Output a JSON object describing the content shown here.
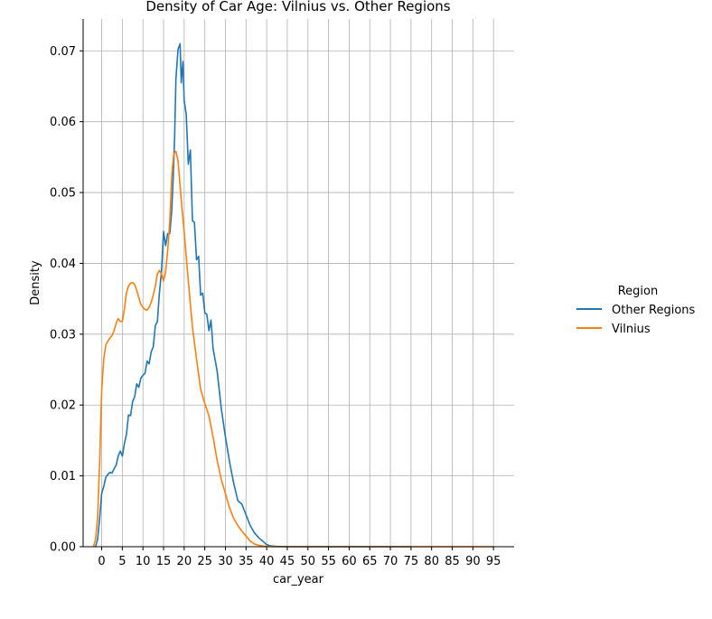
{
  "chart_data": {
    "type": "line",
    "title": "Density of Car Age: Vilnius vs. Other Regions",
    "xlabel": "car_year",
    "ylabel": "Density",
    "xlim": [
      -4.5,
      100
    ],
    "ylim": [
      0,
      0.0745
    ],
    "xticks": [
      0,
      5,
      10,
      15,
      20,
      25,
      30,
      35,
      40,
      45,
      50,
      55,
      60,
      65,
      70,
      75,
      80,
      85,
      90,
      95
    ],
    "xtick_labels": [
      "0",
      "5",
      "10",
      "15",
      "20",
      "25",
      "30",
      "35",
      "40",
      "45",
      "50",
      "55",
      "60",
      "65",
      "70",
      "75",
      "80",
      "85",
      "90",
      "95"
    ],
    "yticks": [
      0,
      0.01,
      0.02,
      0.03,
      0.04,
      0.05,
      0.06,
      0.07
    ],
    "ytick_labels": [
      "0.00",
      "0.01",
      "0.02",
      "0.03",
      "0.04",
      "0.05",
      "0.06",
      "0.07"
    ],
    "grid": "vertical and horizontal",
    "legend": {
      "title": "Region",
      "placement": "right outside"
    },
    "series": [
      {
        "name": "Other Regions",
        "color": "#1f77b4",
        "x": [
          -1.5,
          -1,
          -0.5,
          0,
          0.5,
          1,
          1.5,
          2,
          2.5,
          3,
          3.5,
          4,
          4.5,
          5,
          5.5,
          6,
          6.5,
          7,
          7.5,
          8,
          8.5,
          9,
          9.5,
          10,
          10.5,
          11,
          11.5,
          12,
          12.5,
          13,
          13.5,
          14,
          14.5,
          15,
          15.5,
          16,
          16.5,
          17,
          17.3,
          17.7,
          18,
          18.5,
          19,
          19.3,
          19.7,
          20,
          20.5,
          21,
          21.5,
          22,
          22.5,
          23,
          23.5,
          24,
          24.5,
          25,
          25.5,
          26,
          26.5,
          27,
          28,
          29,
          30,
          31,
          32,
          33,
          34,
          35,
          36,
          37,
          38,
          39,
          40,
          41,
          42,
          45,
          50,
          55,
          60,
          65,
          70,
          75
        ],
        "y": [
          0,
          0.001,
          0.004,
          0.0075,
          0.0085,
          0.0098,
          0.0102,
          0.0105,
          0.0104,
          0.011,
          0.0115,
          0.0128,
          0.0135,
          0.0128,
          0.0145,
          0.0158,
          0.0186,
          0.0185,
          0.0205,
          0.0212,
          0.023,
          0.0225,
          0.0238,
          0.0242,
          0.0245,
          0.0262,
          0.0258,
          0.0275,
          0.0282,
          0.0312,
          0.0318,
          0.0358,
          0.0388,
          0.0445,
          0.0425,
          0.0442,
          0.0442,
          0.0475,
          0.0515,
          0.058,
          0.066,
          0.0702,
          0.071,
          0.0655,
          0.0685,
          0.063,
          0.061,
          0.054,
          0.056,
          0.046,
          0.0458,
          0.0405,
          0.041,
          0.0355,
          0.0358,
          0.033,
          0.0328,
          0.0305,
          0.032,
          0.028,
          0.0248,
          0.0195,
          0.0155,
          0.012,
          0.009,
          0.0065,
          0.006,
          0.0045,
          0.003,
          0.002,
          0.0013,
          0.0008,
          0.0003,
          0.0001,
          5e-05,
          0,
          0,
          0,
          0,
          0,
          0,
          0
        ]
      },
      {
        "name": "Vilnius",
        "color": "#ff7f0e",
        "x": [
          -2,
          -1.5,
          -1,
          -0.5,
          0,
          0.5,
          1,
          1.5,
          2,
          2.5,
          3,
          3.5,
          4,
          4.5,
          5,
          5.5,
          6,
          6.5,
          7,
          7.5,
          8,
          8.5,
          9,
          9.5,
          10,
          10.5,
          11,
          11.5,
          12,
          12.5,
          13,
          13.5,
          14,
          14.5,
          15,
          15.5,
          16,
          16.5,
          17,
          17.5,
          18,
          18.5,
          19,
          19.5,
          20,
          21,
          22,
          23,
          24,
          25,
          26,
          27,
          28,
          29,
          30,
          31,
          32,
          33,
          34,
          35,
          36,
          37,
          38,
          39,
          40,
          42,
          45,
          50,
          60,
          70,
          80,
          90,
          95
        ],
        "y": [
          0,
          0.001,
          0.004,
          0.012,
          0.022,
          0.0265,
          0.0285,
          0.029,
          0.0295,
          0.0298,
          0.0305,
          0.0315,
          0.0322,
          0.0318,
          0.0318,
          0.0335,
          0.0358,
          0.0368,
          0.0372,
          0.0373,
          0.037,
          0.0362,
          0.0352,
          0.0342,
          0.0338,
          0.0335,
          0.0334,
          0.0338,
          0.0345,
          0.0355,
          0.0368,
          0.0385,
          0.039,
          0.0385,
          0.0375,
          0.0388,
          0.0418,
          0.046,
          0.0525,
          0.0555,
          0.0558,
          0.0545,
          0.051,
          0.0475,
          0.0445,
          0.0375,
          0.031,
          0.0265,
          0.0222,
          0.0202,
          0.0185,
          0.0155,
          0.0122,
          0.0095,
          0.0075,
          0.0055,
          0.004,
          0.003,
          0.0022,
          0.0015,
          0.0008,
          0.0004,
          0.0002,
          0.0001,
          5e-05,
          0,
          0,
          0,
          0,
          0,
          0,
          0,
          0
        ]
      }
    ]
  }
}
